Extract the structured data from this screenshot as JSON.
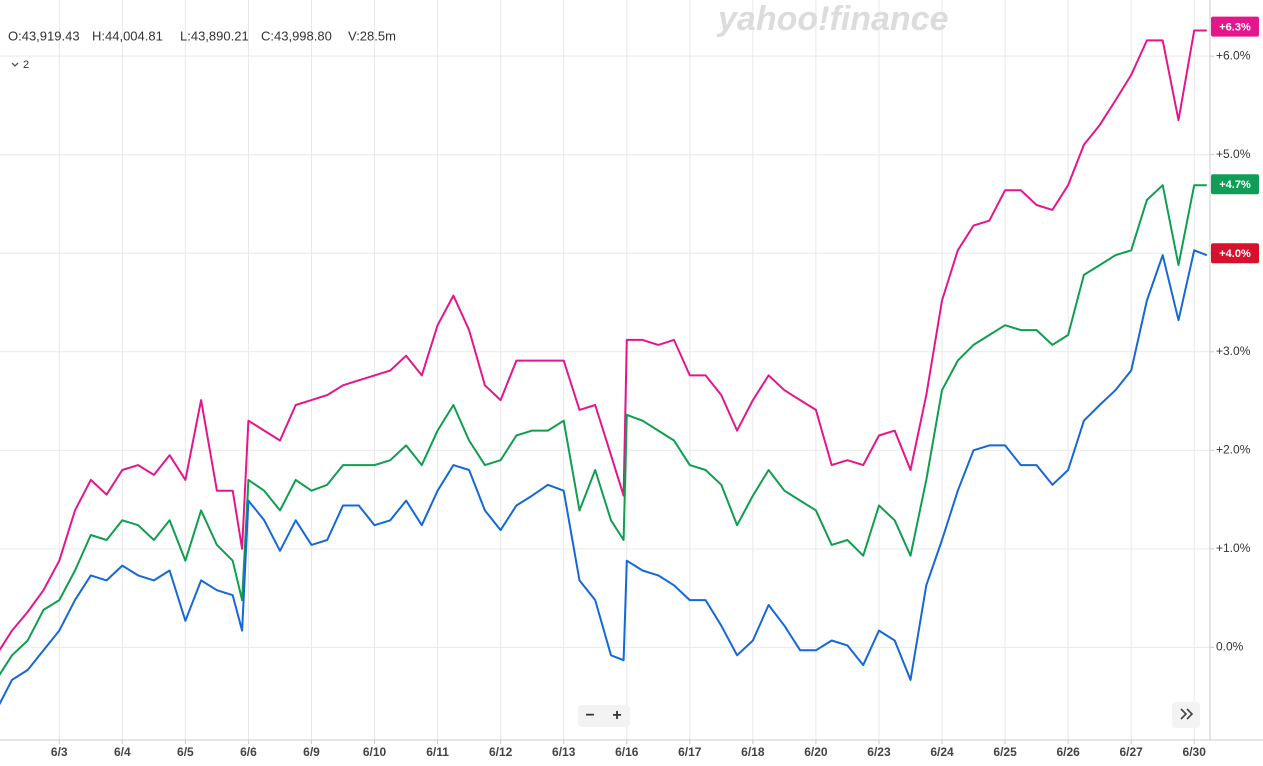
{
  "header": {
    "ohlc": [
      "O:43,919.43",
      "H:44,004.81",
      "L:43,890.21",
      "C:43,998.80",
      "V:28.5m"
    ],
    "count": "2",
    "logo": "yahoo!finance"
  },
  "controls": {
    "zoom_out": "−",
    "zoom_in": "+"
  },
  "chart_data": {
    "type": "line",
    "x": [
      -1,
      -0.75,
      -0.5,
      -0.25,
      0,
      0.25,
      0.5,
      0.75,
      1,
      1.25,
      1.5,
      1.75,
      2,
      2.25,
      2.5,
      2.75,
      2.9,
      3,
      3.25,
      3.5,
      3.75,
      4,
      4.25,
      4.5,
      4.75,
      5,
      5.25,
      5.5,
      5.75,
      6,
      6.25,
      6.5,
      6.75,
      7,
      7.25,
      7.5,
      7.75,
      8,
      8.25,
      8.5,
      8.75,
      8.95,
      9,
      9.25,
      9.5,
      9.75,
      10,
      10.25,
      10.5,
      10.75,
      11,
      11.25,
      11.5,
      11.75,
      12,
      12.25,
      12.5,
      12.75,
      13,
      13.25,
      13.5,
      13.75,
      14,
      14.25,
      14.5,
      14.75,
      15,
      15.25,
      15.5,
      15.75,
      16,
      16.25,
      16.5,
      16.75,
      17,
      17.25,
      17.5,
      17.75,
      18,
      18.2
    ],
    "series": [
      {
        "color": "#e5168c",
        "badge": {
          "value": 6.3,
          "label": "+6.3%",
          "color": "#e5168c"
        },
        "values": [
          -0.08,
          0.17,
          0.36,
          0.58,
          0.88,
          1.39,
          1.7,
          1.55,
          1.8,
          1.85,
          1.75,
          1.95,
          1.7,
          2.51,
          1.59,
          1.59,
          1.0,
          2.3,
          2.2,
          2.1,
          2.46,
          2.51,
          2.56,
          2.66,
          2.71,
          2.76,
          2.81,
          2.96,
          2.76,
          3.27,
          3.57,
          3.22,
          2.66,
          2.51,
          2.91,
          2.91,
          2.91,
          2.91,
          2.41,
          2.46,
          1.95,
          1.54,
          3.12,
          3.12,
          3.07,
          3.12,
          2.76,
          2.76,
          2.56,
          2.2,
          2.51,
          2.76,
          2.61,
          2.51,
          2.41,
          1.85,
          1.9,
          1.85,
          2.15,
          2.2,
          1.8,
          2.56,
          3.52,
          4.03,
          4.28,
          4.33,
          4.64,
          4.64,
          4.49,
          4.44,
          4.69,
          5.1,
          5.3,
          5.55,
          5.81,
          6.16,
          6.16,
          5.35,
          6.26,
          6.26
        ]
      },
      {
        "color": "#109e4f",
        "badge": {
          "value": 4.7,
          "label": "+4.7%",
          "color": "#0f9d58"
        },
        "values": [
          -0.33,
          -0.08,
          0.07,
          0.38,
          0.48,
          0.78,
          1.14,
          1.09,
          1.29,
          1.24,
          1.09,
          1.29,
          0.88,
          1.39,
          1.04,
          0.88,
          0.48,
          1.7,
          1.59,
          1.39,
          1.7,
          1.59,
          1.65,
          1.85,
          1.85,
          1.85,
          1.9,
          2.05,
          1.85,
          2.2,
          2.46,
          2.1,
          1.85,
          1.9,
          2.15,
          2.2,
          2.2,
          2.3,
          1.39,
          1.8,
          1.29,
          1.09,
          2.36,
          2.3,
          2.2,
          2.1,
          1.85,
          1.8,
          1.65,
          1.24,
          1.54,
          1.8,
          1.59,
          1.49,
          1.39,
          1.04,
          1.09,
          0.93,
          1.44,
          1.29,
          0.93,
          1.7,
          2.61,
          2.91,
          3.07,
          3.17,
          3.27,
          3.22,
          3.22,
          3.07,
          3.17,
          3.78,
          3.88,
          3.98,
          4.03,
          4.54,
          4.69,
          3.88,
          4.69,
          4.69
        ]
      },
      {
        "color": "#1468d8",
        "badge": {
          "value": 4.0,
          "label": "+4.0%",
          "color": "#d8102e"
        },
        "values": [
          -0.64,
          -0.33,
          -0.23,
          -0.03,
          0.17,
          0.48,
          0.73,
          0.68,
          0.83,
          0.73,
          0.68,
          0.78,
          0.27,
          0.68,
          0.58,
          0.53,
          0.17,
          1.49,
          1.29,
          0.98,
          1.29,
          1.04,
          1.09,
          1.44,
          1.44,
          1.24,
          1.29,
          1.49,
          1.24,
          1.59,
          1.85,
          1.8,
          1.39,
          1.19,
          1.44,
          1.54,
          1.65,
          1.59,
          0.68,
          0.48,
          -0.08,
          -0.13,
          0.88,
          0.78,
          0.73,
          0.63,
          0.48,
          0.48,
          0.22,
          -0.08,
          0.07,
          0.43,
          0.22,
          -0.03,
          -0.03,
          0.07,
          0.02,
          -0.18,
          0.17,
          0.07,
          -0.33,
          0.63,
          1.09,
          1.59,
          2.0,
          2.05,
          2.05,
          1.85,
          1.85,
          1.65,
          1.8,
          2.3,
          2.46,
          2.61,
          2.81,
          3.52,
          3.98,
          3.32,
          4.03,
          3.98
        ]
      }
    ],
    "xlim": [
      -0.94,
      18.25
    ],
    "xticks": [
      {
        "value": 0,
        "label": "6/3"
      },
      {
        "value": 1,
        "label": "6/4"
      },
      {
        "value": 2,
        "label": "6/5"
      },
      {
        "value": 3,
        "label": "6/6"
      },
      {
        "value": 4,
        "label": "6/9"
      },
      {
        "value": 5,
        "label": "6/10"
      },
      {
        "value": 6,
        "label": "6/11"
      },
      {
        "value": 7,
        "label": "6/12"
      },
      {
        "value": 8,
        "label": "6/13"
      },
      {
        "value": 9,
        "label": "6/16"
      },
      {
        "value": 10,
        "label": "6/17"
      },
      {
        "value": 11,
        "label": "6/18"
      },
      {
        "value": 12,
        "label": "6/20"
      },
      {
        "value": 13,
        "label": "6/23"
      },
      {
        "value": 14,
        "label": "6/24"
      },
      {
        "value": 15,
        "label": "6/25"
      },
      {
        "value": 16,
        "label": "6/26"
      },
      {
        "value": 17,
        "label": "6/27"
      },
      {
        "value": 18,
        "label": "6/30"
      }
    ],
    "ylim": [
      -0.94,
      6.57
    ],
    "yticks": [
      {
        "value": 0,
        "label": "0.0%"
      },
      {
        "value": 1,
        "label": "+1.0%"
      },
      {
        "value": 2,
        "label": "+2.0%"
      },
      {
        "value": 3,
        "label": "+3.0%"
      },
      {
        "value": 4,
        "label": "+4.0%"
      },
      {
        "value": 5,
        "label": "+5.0%"
      },
      {
        "value": 6,
        "label": "+6.0%"
      }
    ],
    "grid": true
  }
}
